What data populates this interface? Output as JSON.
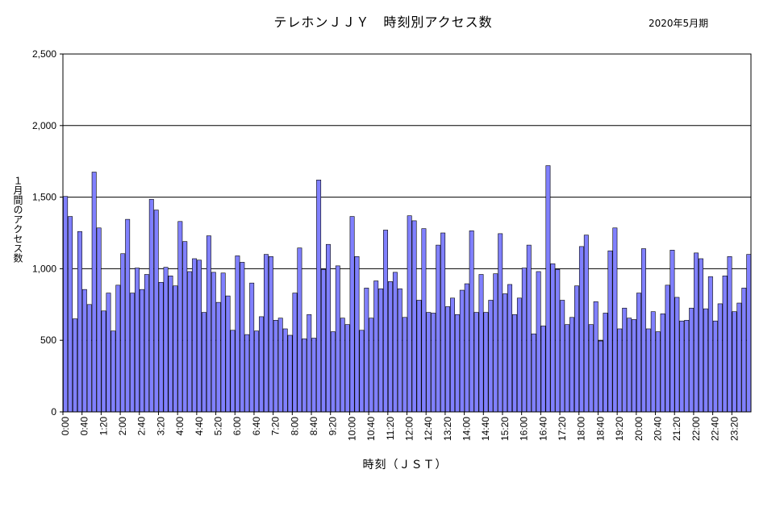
{
  "chart_data": {
    "type": "bar",
    "title": "テレホンＪＪＹ　時刻別アクセス数",
    "period": "2020年5月期",
    "ylabel": "１月間のアクセス数",
    "xlabel": "時刻（ＪＳＴ）",
    "ylim": [
      0,
      2500
    ],
    "yticks": [
      0,
      500,
      1000,
      1500,
      2000,
      2500
    ],
    "ytick_labels": [
      "0",
      "500",
      "1,000",
      "1,500",
      "2,000",
      "2,500"
    ],
    "xtick_labels": [
      "0:00",
      "0:40",
      "1:20",
      "2:00",
      "2:40",
      "3:20",
      "4:00",
      "4:40",
      "5:20",
      "6:00",
      "6:40",
      "7:20",
      "8:00",
      "8:40",
      "9:20",
      "10:00",
      "10:40",
      "11:20",
      "12:00",
      "12:40",
      "13:20",
      "14:00",
      "14:40",
      "15:20",
      "16:00",
      "16:40",
      "17:20",
      "18:00",
      "18:40",
      "19:20",
      "20:00",
      "20:40",
      "21:20",
      "22:00",
      "22:40",
      "23:20"
    ],
    "bar_color": "#8080ff",
    "grid": true,
    "categories_note": "144 bars, one per 10 minutes from 0:00 to 23:50",
    "values": [
      1505,
      1365,
      650,
      1260,
      855,
      750,
      1675,
      1285,
      705,
      830,
      565,
      885,
      1105,
      1345,
      830,
      1005,
      855,
      960,
      1485,
      1410,
      905,
      1010,
      950,
      880,
      1330,
      1190,
      980,
      1070,
      1060,
      695,
      1230,
      975,
      765,
      970,
      810,
      570,
      1090,
      1045,
      540,
      900,
      565,
      665,
      1100,
      1085,
      640,
      655,
      580,
      535,
      830,
      1145,
      510,
      680,
      515,
      1620,
      995,
      1170,
      560,
      1020,
      655,
      610,
      1365,
      1085,
      570,
      865,
      655,
      915,
      860,
      1270,
      910,
      975,
      860,
      660,
      1370,
      1335,
      780,
      1280,
      695,
      690,
      1165,
      1250,
      735,
      795,
      680,
      850,
      895,
      1265,
      695,
      960,
      695,
      780,
      965,
      1245,
      825,
      890,
      680,
      795,
      1005,
      1165,
      545,
      980,
      600,
      1720,
      1035,
      995,
      780,
      610,
      660,
      880,
      1155,
      1235,
      610,
      770,
      495,
      690,
      1125,
      1285,
      580,
      725,
      655,
      645,
      830,
      1140,
      580,
      700,
      560,
      685,
      885,
      1130,
      800,
      635,
      640,
      725,
      1110,
      1070,
      720,
      945,
      635,
      755,
      950,
      1085,
      700,
      760,
      865,
      1100
    ]
  }
}
